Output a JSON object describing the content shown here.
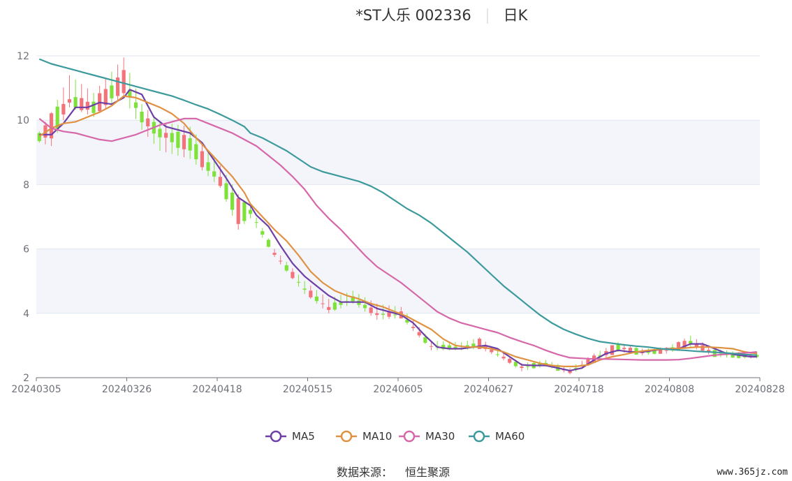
{
  "title": "*ST人乐 002336",
  "period_label": "日K",
  "source_label": "数据来源：",
  "source_value": "恒生聚源",
  "watermark": "www.365jz.com",
  "colors": {
    "up": "#f3737b",
    "down": "#7ee23a",
    "MA5": "#6e3fa6",
    "MA10": "#e09243",
    "MA30": "#d667a8",
    "MA60": "#3d9a9c",
    "band": "#f3f5fb",
    "grid": "#e0e6f1",
    "axis": "#6e7079"
  },
  "chart_data": {
    "type": "candlestick",
    "ylim": [
      2,
      12
    ],
    "yticks": [
      "2",
      "4",
      "6",
      "8",
      "10",
      "12"
    ],
    "xticks": [
      "20240305",
      "20240326",
      "20240418",
      "20240515",
      "20240605",
      "20240627",
      "20240718",
      "20240808",
      "20240828"
    ],
    "ohlc_keyframes": [
      {
        "i": 0,
        "o": 9.35,
        "c": 9.6,
        "h": 9.65,
        "l": 9.3
      },
      {
        "i": 2,
        "o": 9.45,
        "c": 10.2,
        "h": 10.25,
        "l": 9.2
      },
      {
        "i": 5,
        "o": 10.5,
        "c": 10.7,
        "h": 11.4,
        "l": 10.4
      },
      {
        "i": 9,
        "o": 10.2,
        "c": 10.6,
        "h": 10.85,
        "l": 10.1
      },
      {
        "i": 14,
        "o": 10.9,
        "c": 11.5,
        "h": 11.95,
        "l": 10.7
      },
      {
        "i": 17,
        "o": 10.3,
        "c": 9.9,
        "h": 10.5,
        "l": 9.7
      },
      {
        "i": 20,
        "o": 9.7,
        "c": 9.5,
        "h": 9.95,
        "l": 9.05
      },
      {
        "i": 25,
        "o": 9.5,
        "c": 9.0,
        "h": 9.8,
        "l": 8.8
      },
      {
        "i": 30,
        "o": 8.2,
        "c": 8.0,
        "h": 8.6,
        "l": 7.9
      },
      {
        "i": 33,
        "o": 7.6,
        "c": 6.75,
        "h": 7.7,
        "l": 6.6
      },
      {
        "i": 35,
        "o": 7.2,
        "c": 7.1,
        "h": 7.3,
        "l": 6.95
      },
      {
        "i": 39,
        "o": 5.9,
        "c": 5.8,
        "h": 6.0,
        "l": 5.75
      },
      {
        "i": 44,
        "o": 4.8,
        "c": 4.7,
        "h": 5.0,
        "l": 4.6
      },
      {
        "i": 48,
        "o": 4.2,
        "c": 4.1,
        "h": 4.45,
        "l": 4.0
      },
      {
        "i": 52,
        "o": 4.5,
        "c": 4.4,
        "h": 4.7,
        "l": 4.3
      },
      {
        "i": 56,
        "o": 3.9,
        "c": 4.05,
        "h": 4.3,
        "l": 3.8
      },
      {
        "i": 60,
        "o": 4.0,
        "c": 3.9,
        "h": 4.2,
        "l": 3.85
      },
      {
        "i": 65,
        "o": 3.0,
        "c": 2.95,
        "h": 3.15,
        "l": 2.85
      },
      {
        "i": 70,
        "o": 2.95,
        "c": 2.9,
        "h": 3.1,
        "l": 2.85
      },
      {
        "i": 73,
        "o": 2.95,
        "c": 3.15,
        "h": 3.25,
        "l": 2.9
      },
      {
        "i": 76,
        "o": 2.75,
        "c": 2.7,
        "h": 2.85,
        "l": 2.65
      },
      {
        "i": 80,
        "o": 2.35,
        "c": 2.3,
        "h": 2.45,
        "l": 2.2
      },
      {
        "i": 84,
        "o": 2.45,
        "c": 2.4,
        "h": 2.55,
        "l": 2.35
      },
      {
        "i": 88,
        "o": 2.2,
        "c": 2.15,
        "h": 2.3,
        "l": 2.1
      },
      {
        "i": 92,
        "o": 2.5,
        "c": 2.65,
        "h": 2.75,
        "l": 2.45
      },
      {
        "i": 96,
        "o": 2.85,
        "c": 3.05,
        "h": 3.1,
        "l": 2.8
      },
      {
        "i": 100,
        "o": 2.75,
        "c": 2.8,
        "h": 2.9,
        "l": 2.7
      },
      {
        "i": 104,
        "o": 2.8,
        "c": 2.9,
        "h": 2.95,
        "l": 2.75
      },
      {
        "i": 108,
        "o": 3.0,
        "c": 3.2,
        "h": 3.3,
        "l": 2.95
      },
      {
        "i": 112,
        "o": 2.8,
        "c": 2.7,
        "h": 2.9,
        "l": 2.65
      },
      {
        "i": 116,
        "o": 2.7,
        "c": 2.65,
        "h": 2.8,
        "l": 2.6
      },
      {
        "i": 119,
        "o": 2.65,
        "c": 2.7,
        "h": 2.8,
        "l": 2.6
      }
    ],
    "ma_series": [
      {
        "name": "MA5",
        "points": [
          [
            0,
            9.55
          ],
          [
            2,
            9.55
          ],
          [
            4,
            9.9
          ],
          [
            6,
            10.4
          ],
          [
            8,
            10.4
          ],
          [
            10,
            10.55
          ],
          [
            12,
            10.5
          ],
          [
            14,
            10.7
          ],
          [
            15,
            10.95
          ],
          [
            17,
            10.8
          ],
          [
            19,
            10.1
          ],
          [
            21,
            9.8
          ],
          [
            23,
            9.7
          ],
          [
            25,
            9.6
          ],
          [
            27,
            9.3
          ],
          [
            29,
            8.75
          ],
          [
            31,
            8.2
          ],
          [
            33,
            7.6
          ],
          [
            35,
            7.35
          ],
          [
            36,
            7.05
          ],
          [
            38,
            6.7
          ],
          [
            40,
            6.1
          ],
          [
            42,
            5.55
          ],
          [
            44,
            5.15
          ],
          [
            46,
            4.85
          ],
          [
            48,
            4.55
          ],
          [
            50,
            4.35
          ],
          [
            52,
            4.35
          ],
          [
            54,
            4.35
          ],
          [
            56,
            4.15
          ],
          [
            58,
            4.05
          ],
          [
            60,
            3.95
          ],
          [
            62,
            3.7
          ],
          [
            64,
            3.3
          ],
          [
            66,
            2.95
          ],
          [
            68,
            2.9
          ],
          [
            70,
            2.9
          ],
          [
            72,
            2.95
          ],
          [
            74,
            3.0
          ],
          [
            76,
            2.9
          ],
          [
            78,
            2.65
          ],
          [
            80,
            2.4
          ],
          [
            82,
            2.38
          ],
          [
            84,
            2.38
          ],
          [
            86,
            2.3
          ],
          [
            88,
            2.22
          ],
          [
            90,
            2.3
          ],
          [
            92,
            2.55
          ],
          [
            94,
            2.75
          ],
          [
            96,
            2.85
          ],
          [
            98,
            2.8
          ],
          [
            100,
            2.8
          ],
          [
            102,
            2.85
          ],
          [
            104,
            2.9
          ],
          [
            106,
            2.9
          ],
          [
            108,
            3.05
          ],
          [
            110,
            3.05
          ],
          [
            112,
            2.9
          ],
          [
            114,
            2.75
          ],
          [
            116,
            2.7
          ],
          [
            118,
            2.65
          ],
          [
            119,
            2.65
          ]
        ]
      },
      {
        "name": "MA10",
        "points": [
          [
            0,
            9.5
          ],
          [
            2,
            9.75
          ],
          [
            4,
            9.9
          ],
          [
            6,
            9.95
          ],
          [
            8,
            10.1
          ],
          [
            10,
            10.25
          ],
          [
            12,
            10.45
          ],
          [
            14,
            10.75
          ],
          [
            16,
            10.7
          ],
          [
            18,
            10.55
          ],
          [
            20,
            10.4
          ],
          [
            22,
            10.2
          ],
          [
            24,
            9.9
          ],
          [
            26,
            9.45
          ],
          [
            28,
            9.05
          ],
          [
            30,
            8.65
          ],
          [
            32,
            8.25
          ],
          [
            34,
            7.75
          ],
          [
            35,
            7.4
          ],
          [
            37,
            7.0
          ],
          [
            39,
            6.6
          ],
          [
            41,
            6.25
          ],
          [
            43,
            5.8
          ],
          [
            45,
            5.3
          ],
          [
            47,
            4.95
          ],
          [
            49,
            4.7
          ],
          [
            51,
            4.55
          ],
          [
            53,
            4.45
          ],
          [
            55,
            4.3
          ],
          [
            57,
            4.2
          ],
          [
            59,
            4.05
          ],
          [
            61,
            3.9
          ],
          [
            63,
            3.7
          ],
          [
            65,
            3.5
          ],
          [
            67,
            3.2
          ],
          [
            69,
            3.0
          ],
          [
            71,
            2.95
          ],
          [
            73,
            2.95
          ],
          [
            75,
            2.9
          ],
          [
            77,
            2.8
          ],
          [
            79,
            2.65
          ],
          [
            81,
            2.55
          ],
          [
            83,
            2.45
          ],
          [
            85,
            2.38
          ],
          [
            87,
            2.35
          ],
          [
            89,
            2.35
          ],
          [
            91,
            2.4
          ],
          [
            93,
            2.55
          ],
          [
            95,
            2.65
          ],
          [
            97,
            2.72
          ],
          [
            99,
            2.8
          ],
          [
            101,
            2.85
          ],
          [
            103,
            2.88
          ],
          [
            105,
            2.9
          ],
          [
            107,
            2.92
          ],
          [
            109,
            2.95
          ],
          [
            111,
            2.95
          ],
          [
            113,
            2.93
          ],
          [
            115,
            2.9
          ],
          [
            117,
            2.8
          ],
          [
            119,
            2.75
          ]
        ]
      },
      {
        "name": "MA30",
        "points": [
          [
            0,
            10.05
          ],
          [
            2,
            9.75
          ],
          [
            4,
            9.65
          ],
          [
            6,
            9.6
          ],
          [
            8,
            9.5
          ],
          [
            10,
            9.4
          ],
          [
            12,
            9.35
          ],
          [
            14,
            9.45
          ],
          [
            16,
            9.55
          ],
          [
            18,
            9.7
          ],
          [
            20,
            9.85
          ],
          [
            22,
            9.95
          ],
          [
            24,
            10.05
          ],
          [
            26,
            10.05
          ],
          [
            28,
            9.9
          ],
          [
            30,
            9.75
          ],
          [
            32,
            9.6
          ],
          [
            34,
            9.4
          ],
          [
            36,
            9.2
          ],
          [
            38,
            8.9
          ],
          [
            40,
            8.6
          ],
          [
            42,
            8.25
          ],
          [
            44,
            7.85
          ],
          [
            46,
            7.35
          ],
          [
            48,
            6.95
          ],
          [
            50,
            6.6
          ],
          [
            52,
            6.2
          ],
          [
            54,
            5.8
          ],
          [
            56,
            5.45
          ],
          [
            58,
            5.2
          ],
          [
            60,
            4.95
          ],
          [
            62,
            4.65
          ],
          [
            64,
            4.35
          ],
          [
            66,
            4.05
          ],
          [
            68,
            3.85
          ],
          [
            70,
            3.7
          ],
          [
            72,
            3.6
          ],
          [
            74,
            3.5
          ],
          [
            76,
            3.4
          ],
          [
            78,
            3.25
          ],
          [
            80,
            3.12
          ],
          [
            82,
            3.0
          ],
          [
            84,
            2.85
          ],
          [
            86,
            2.72
          ],
          [
            88,
            2.62
          ],
          [
            90,
            2.6
          ],
          [
            92,
            2.58
          ],
          [
            94,
            2.58
          ],
          [
            96,
            2.57
          ],
          [
            98,
            2.56
          ],
          [
            100,
            2.55
          ],
          [
            102,
            2.55
          ],
          [
            104,
            2.55
          ],
          [
            106,
            2.56
          ],
          [
            108,
            2.6
          ],
          [
            110,
            2.65
          ],
          [
            112,
            2.7
          ],
          [
            114,
            2.73
          ],
          [
            116,
            2.76
          ],
          [
            118,
            2.78
          ],
          [
            119,
            2.8
          ]
        ]
      },
      {
        "name": "MA60",
        "points": [
          [
            0,
            11.9
          ],
          [
            2,
            11.75
          ],
          [
            4,
            11.65
          ],
          [
            6,
            11.55
          ],
          [
            8,
            11.45
          ],
          [
            10,
            11.35
          ],
          [
            12,
            11.25
          ],
          [
            14,
            11.15
          ],
          [
            16,
            11.05
          ],
          [
            18,
            10.95
          ],
          [
            20,
            10.85
          ],
          [
            22,
            10.75
          ],
          [
            24,
            10.62
          ],
          [
            26,
            10.48
          ],
          [
            28,
            10.35
          ],
          [
            30,
            10.18
          ],
          [
            32,
            10.0
          ],
          [
            34,
            9.8
          ],
          [
            35,
            9.6
          ],
          [
            37,
            9.45
          ],
          [
            39,
            9.25
          ],
          [
            41,
            9.05
          ],
          [
            43,
            8.8
          ],
          [
            45,
            8.55
          ],
          [
            47,
            8.4
          ],
          [
            49,
            8.3
          ],
          [
            51,
            8.2
          ],
          [
            53,
            8.1
          ],
          [
            55,
            7.95
          ],
          [
            57,
            7.75
          ],
          [
            59,
            7.5
          ],
          [
            61,
            7.25
          ],
          [
            63,
            7.05
          ],
          [
            65,
            6.8
          ],
          [
            67,
            6.5
          ],
          [
            69,
            6.2
          ],
          [
            71,
            5.9
          ],
          [
            73,
            5.55
          ],
          [
            75,
            5.2
          ],
          [
            77,
            4.85
          ],
          [
            79,
            4.55
          ],
          [
            81,
            4.25
          ],
          [
            83,
            3.95
          ],
          [
            85,
            3.7
          ],
          [
            87,
            3.5
          ],
          [
            89,
            3.35
          ],
          [
            91,
            3.22
          ],
          [
            93,
            3.12
          ],
          [
            95,
            3.07
          ],
          [
            97,
            3.02
          ],
          [
            99,
            2.98
          ],
          [
            101,
            2.95
          ],
          [
            103,
            2.9
          ],
          [
            105,
            2.87
          ],
          [
            107,
            2.85
          ],
          [
            109,
            2.82
          ],
          [
            111,
            2.8
          ],
          [
            113,
            2.78
          ],
          [
            115,
            2.75
          ],
          [
            117,
            2.72
          ],
          [
            119,
            2.7
          ]
        ]
      }
    ],
    "legend": [
      "MA5",
      "MA10",
      "MA30",
      "MA60"
    ],
    "legend_placement": "bottom-center",
    "grid": true
  }
}
